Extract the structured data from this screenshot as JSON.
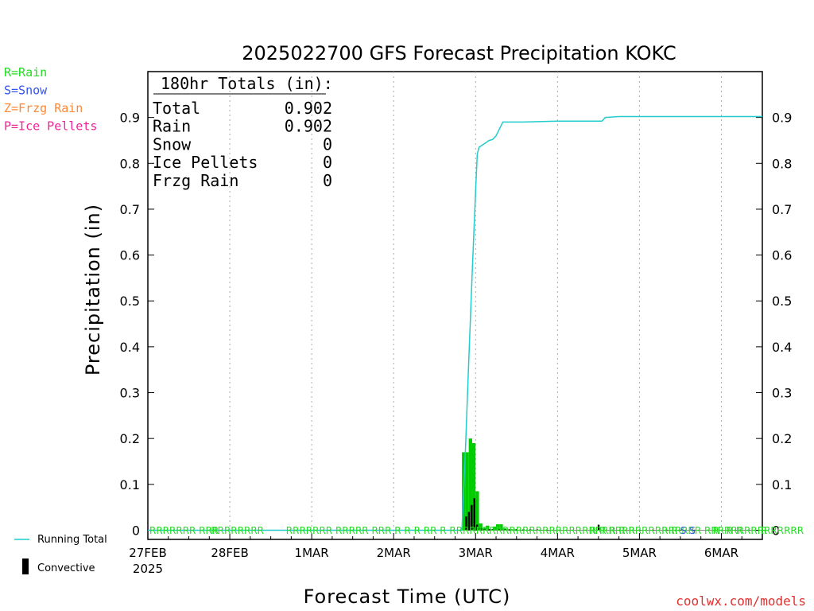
{
  "chart_data": {
    "type": "bar",
    "title": "2025022700 GFS Forecast Precipitation KOKC",
    "xlabel": "Forecast Time (UTC)",
    "ylabel": "Precipitation (in)",
    "ylim": [
      -0.02,
      1.0
    ],
    "xlim_hours": [
      0,
      180
    ],
    "y_ticks": [
      0,
      0.1,
      0.2,
      0.3,
      0.4,
      0.5,
      0.6,
      0.7,
      0.8,
      0.9
    ],
    "y_tick_labels": [
      "0",
      "0.1",
      "0.2",
      "0.3",
      "0.4",
      "0.5",
      "0.6",
      "0.7",
      "0.8",
      "0.9"
    ],
    "x_ticks": [
      {
        "hour": 0,
        "label": "27FEB",
        "sublabel": "2025"
      },
      {
        "hour": 24,
        "label": "28FEB"
      },
      {
        "hour": 48,
        "label": "1MAR"
      },
      {
        "hour": 72,
        "label": "2MAR"
      },
      {
        "hour": 96,
        "label": "3MAR"
      },
      {
        "hour": 120,
        "label": "4MAR"
      },
      {
        "hour": 144,
        "label": "5MAR"
      },
      {
        "hour": 168,
        "label": "6MAR"
      }
    ],
    "grid": "vertical dotted",
    "totals_box": {
      "heading": "180hr Totals (in):",
      "rows": [
        {
          "label": "Total",
          "value": "0.902"
        },
        {
          "label": "Rain",
          "value": "0.902"
        },
        {
          "label": "Snow",
          "value": "0"
        },
        {
          "label": "Ice Pellets",
          "value": "0"
        },
        {
          "label": "Frzg Rain",
          "value": "0"
        }
      ]
    },
    "ptype_legend": [
      {
        "text": "R=Rain",
        "color": "#22dd22"
      },
      {
        "text": "S=Snow",
        "color": "#3355ee"
      },
      {
        "text": "Z=Frzg Rain",
        "color": "#ff8833"
      },
      {
        "text": "P=Ice Pellets",
        "color": "#ee2299"
      }
    ],
    "series": [
      {
        "name": "Running Total",
        "type": "line",
        "color": "#22cccc",
        "x": [
          0,
          92,
          93,
          94,
          95,
          96,
          96.5,
          97,
          98,
          99,
          100,
          101,
          102,
          103,
          104,
          105,
          105.5,
          110,
          120,
          133,
          134,
          138,
          150,
          160,
          170,
          180
        ],
        "values": [
          0,
          0,
          0.17,
          0.37,
          0.56,
          0.74,
          0.82,
          0.835,
          0.84,
          0.845,
          0.85,
          0.852,
          0.86,
          0.875,
          0.89,
          0.89,
          0.89,
          0.89,
          0.892,
          0.892,
          0.9,
          0.902,
          0.902,
          0.902,
          0.902,
          0.902
        ]
      },
      {
        "name": "Rain",
        "type": "bar",
        "color": "#00cc00",
        "bar_hours": 1,
        "x": [
          92,
          93,
          94,
          95,
          96,
          97,
          98,
          99,
          100,
          101,
          102,
          103,
          104,
          105,
          106,
          107,
          108,
          109,
          110,
          111,
          112,
          113,
          114,
          115,
          116
        ],
        "values": [
          0.17,
          0.17,
          0.2,
          0.19,
          0.085,
          0.015,
          0.005,
          0.01,
          0.002,
          0.008,
          0.013,
          0.013,
          0.004,
          0.002,
          0.002,
          0.002,
          0.001,
          0.001,
          0.001,
          0.001,
          0.001,
          0.001,
          0.001,
          0.001,
          0.001
        ]
      },
      {
        "name": "Convective",
        "type": "bar",
        "color": "#000000",
        "x": [
          93.2,
          94,
          94.8,
          95.6,
          96.4,
          97.5,
          98.5,
          100,
          101,
          103,
          104.5,
          106,
          108,
          110,
          112,
          114,
          117,
          120,
          124,
          128,
          132,
          136,
          140,
          144,
          148,
          152,
          156,
          160,
          164,
          168,
          172,
          176,
          180
        ],
        "values": [
          0.03,
          0.04,
          0.055,
          0.07,
          0.012,
          0.005,
          0.003,
          0.002,
          0.002,
          0.002,
          0.002,
          0.002,
          0.002,
          0.002,
          0.002,
          0.002,
          0.001,
          0.001,
          0.001,
          0.001,
          0.012,
          0.001,
          0.001,
          0.001,
          0.001,
          0.001,
          0.001,
          0.001,
          0.001,
          0.001,
          0.001,
          0.001,
          0.001
        ]
      }
    ],
    "ptype_markers": [
      {
        "hour": 0,
        "text": "RRRRRRR RRR",
        "color": "#22dd22"
      },
      {
        "hour": 18,
        "text": "RRRRRRRR",
        "color": "#22dd22"
      },
      {
        "hour": 40,
        "text": "RRRRRRR RRRRR RRR R R R RR R RRRRRRRRRRRRRRRRRRRRRRRRRRRRRRRRRRRRRR RRRRRRRRRRRRRRR",
        "color": "#22dd22"
      },
      {
        "hour": 129,
        "text": "R R R R R",
        "color": "#22dd22"
      },
      {
        "hour": 150,
        "text": "R R",
        "color": "#22dd22"
      },
      {
        "hour": 155.5,
        "text": "S S",
        "color": "#3355ee"
      },
      {
        "hour": 165,
        "text": "R",
        "color": "#22dd22"
      },
      {
        "hour": 169,
        "text": "R R",
        "color": "#22dd22"
      },
      {
        "hour": 179,
        "text": "R",
        "color": "#22dd22"
      }
    ],
    "legend": [
      {
        "label": "Running Total",
        "kind": "line",
        "color": "#22cccc"
      },
      {
        "label": "Convective",
        "kind": "bar",
        "color": "#000000"
      }
    ]
  },
  "footer": {
    "credit": "coolwx.com/models",
    "credit_color": "#e03030"
  }
}
